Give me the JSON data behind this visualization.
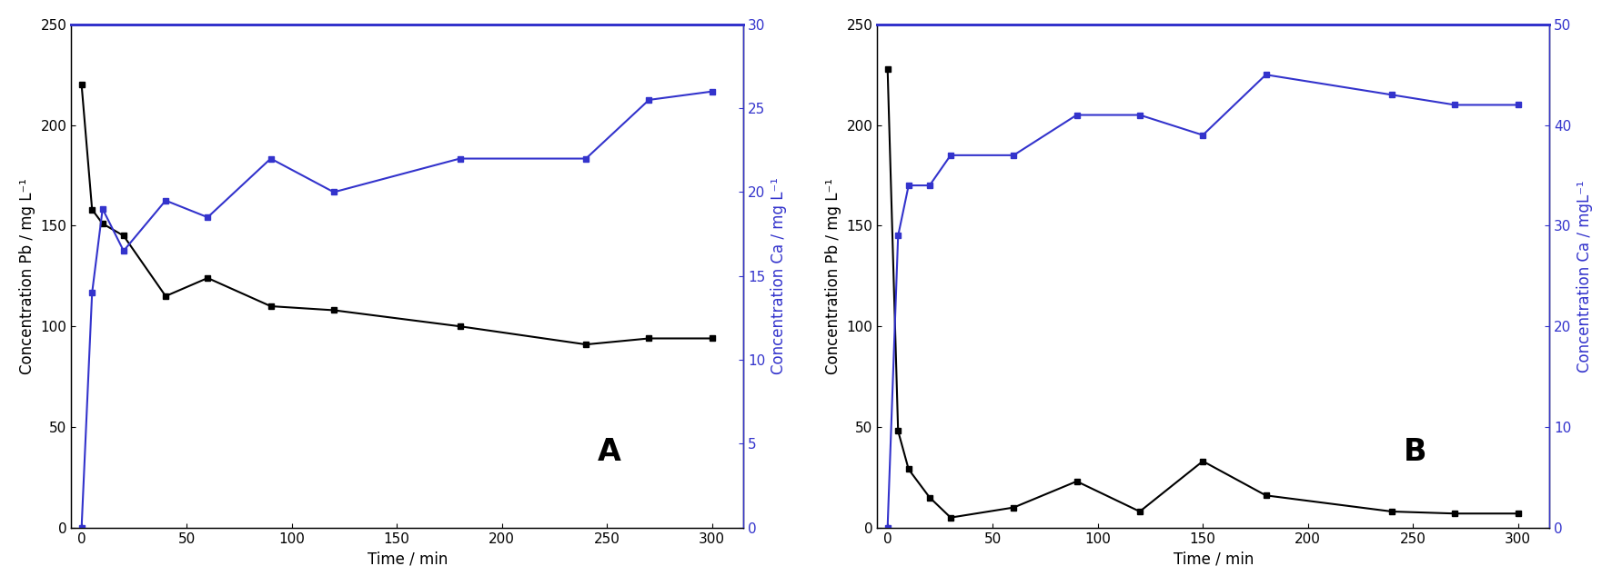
{
  "panel_A": {
    "pb_time": [
      0,
      5,
      10,
      20,
      40,
      60,
      90,
      120,
      180,
      240,
      270,
      300
    ],
    "pb_conc": [
      220,
      158,
      151,
      145,
      115,
      124,
      110,
      108,
      100,
      91,
      94,
      94
    ],
    "ca_time": [
      0,
      5,
      10,
      20,
      40,
      60,
      90,
      120,
      180,
      240,
      270,
      300
    ],
    "ca_conc": [
      0,
      14,
      19,
      16.5,
      19.5,
      18.5,
      22,
      20,
      22,
      22,
      25.5,
      26
    ],
    "pb_ylim": [
      0,
      250
    ],
    "ca_ylim": [
      0,
      30
    ],
    "ca_yticks": [
      0,
      5,
      10,
      15,
      20,
      25,
      30
    ],
    "pb_yticks": [
      0,
      50,
      100,
      150,
      200,
      250
    ],
    "xticks": [
      0,
      50,
      100,
      150,
      200,
      250,
      300
    ],
    "label": "A"
  },
  "panel_B": {
    "pb_time": [
      0,
      5,
      10,
      20,
      30,
      60,
      90,
      120,
      150,
      180,
      240,
      270,
      300
    ],
    "pb_conc": [
      228,
      48,
      29,
      15,
      5,
      10,
      23,
      8,
      33,
      16,
      8,
      7,
      7
    ],
    "ca_time": [
      0,
      5,
      10,
      20,
      30,
      60,
      90,
      120,
      150,
      180,
      240,
      270,
      300
    ],
    "ca_conc": [
      0,
      29,
      34,
      34,
      37,
      37,
      41,
      41,
      39,
      45,
      43,
      42,
      42
    ],
    "pb_ylim": [
      0,
      250
    ],
    "ca_ylim": [
      0,
      50
    ],
    "ca_yticks": [
      0,
      10,
      20,
      30,
      40,
      50
    ],
    "pb_yticks": [
      0,
      50,
      100,
      150,
      200,
      250
    ],
    "xticks": [
      0,
      50,
      100,
      150,
      200,
      250,
      300
    ],
    "label": "B"
  },
  "black_color": "#000000",
  "blue_color": "#3333cc",
  "marker": "s",
  "markersize": 4,
  "linewidth": 1.5,
  "xlabel": "Time / min",
  "ylabel_left": "Concentration Pb / mg L⁻¹",
  "ylabel_right_A": "Concentration Ca / mg L⁻¹",
  "ylabel_right_B": "Concentration Ca / mgL⁻¹",
  "tick_fontsize": 11,
  "label_fontsize": 12,
  "letter_fontsize": 24
}
